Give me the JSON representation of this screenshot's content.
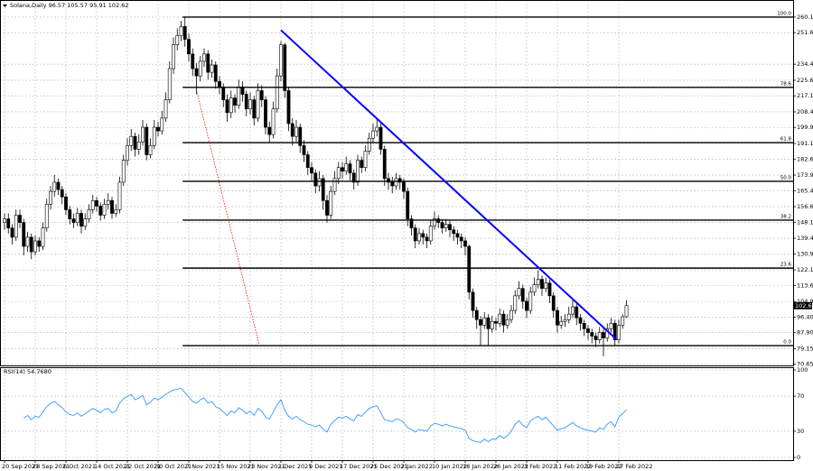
{
  "chart_data": [
    {
      "type": "candlestick",
      "title": "Solana,Daily",
      "ylim": [
        70,
        267
      ],
      "yticks": [
        {
          "value": 260.15,
          "label": "260.15"
        },
        {
          "value": 251.65,
          "label": "251.65"
        },
        {
          "value": 234.4,
          "label": "234.40"
        },
        {
          "value": 225.65,
          "label": "225.65"
        },
        {
          "value": 217.15,
          "label": "217.15"
        },
        {
          "value": 208.4,
          "label": "208.40"
        },
        {
          "value": 199.9,
          "label": "199.90"
        },
        {
          "value": 191.15,
          "label": "191.15"
        },
        {
          "value": 182.65,
          "label": "182.65"
        },
        {
          "value": 173.9,
          "label": "173.90"
        },
        {
          "value": 165.4,
          "label": "165.40"
        },
        {
          "value": 156.65,
          "label": "156.65"
        },
        {
          "value": 148.15,
          "label": "148.15"
        },
        {
          "value": 139.4,
          "label": "139.40"
        },
        {
          "value": 130.9,
          "label": "130.90"
        },
        {
          "value": 122.15,
          "label": "122.15"
        },
        {
          "value": 113.65,
          "label": "113.65"
        },
        {
          "value": 104.9,
          "label": "104.90"
        },
        {
          "value": 96.4,
          "label": "96.40"
        },
        {
          "value": 87.9,
          "label": "87.90"
        },
        {
          "value": 79.15,
          "label": "79.15"
        },
        {
          "value": 70.65,
          "label": "70.65"
        }
      ],
      "xticks": [
        {
          "value": 0,
          "label": "20 Sep 2021"
        },
        {
          "value": 8,
          "label": "28 Sep 2021"
        },
        {
          "value": 16,
          "label": "6 Oct 2021"
        },
        {
          "value": 24,
          "label": "14 Oct 2021"
        },
        {
          "value": 32,
          "label": "22 Oct 2021"
        },
        {
          "value": 40,
          "label": "30 Oct 2021"
        },
        {
          "value": 48,
          "label": "7 Nov 2021"
        },
        {
          "value": 56,
          "label": "15 Nov 2021"
        },
        {
          "value": 64,
          "label": "23 Nov 2021"
        },
        {
          "value": 72,
          "label": "1 Dec 2021"
        },
        {
          "value": 80,
          "label": "9 Dec 2021"
        },
        {
          "value": 88,
          "label": "17 Dec 2021"
        },
        {
          "value": 96,
          "label": "25 Dec 2021"
        },
        {
          "value": 104,
          "label": "2 Jan 2022"
        },
        {
          "value": 112,
          "label": "10 Jan 2022"
        },
        {
          "value": 120,
          "label": "18 Jan 2022"
        },
        {
          "value": 128,
          "label": "26 Jan 2022"
        },
        {
          "value": 136,
          "label": "3 Feb 2022"
        },
        {
          "value": 144,
          "label": "11 Feb 2022"
        },
        {
          "value": 152,
          "label": "19 Feb 2022"
        },
        {
          "value": 160,
          "label": "27 Feb 2022"
        }
      ],
      "grid": true,
      "levels": [
        {
          "value": 260.15,
          "label": "100.0"
        },
        {
          "value": 221.77,
          "label": "78.6"
        },
        {
          "value": 191.64,
          "label": "61.8"
        },
        {
          "value": 170.48,
          "label": "50.0"
        },
        {
          "value": 149.31,
          "label": "38.2"
        },
        {
          "value": 123.13,
          "label": "23.6"
        },
        {
          "value": 80.8,
          "label": "0.0"
        }
      ],
      "trendlines": [
        {
          "color": "#0000ff",
          "style": "solid",
          "x": [
            72,
            159.5
          ],
          "y": [
            253,
            84
          ]
        },
        {
          "color": "#ff0000",
          "style": "dotted",
          "x": [
            50,
            66.4
          ],
          "y": [
            220.3,
            80.8
          ]
        }
      ],
      "candles": [
        [
          148,
          153,
          144,
          150
        ],
        [
          150,
          153,
          142,
          145
        ],
        [
          145,
          147,
          136,
          140
        ],
        [
          140,
          155,
          138,
          152
        ],
        [
          152,
          155,
          145,
          148
        ],
        [
          148,
          150,
          130,
          135
        ],
        [
          135,
          143,
          132,
          140
        ],
        [
          140,
          142,
          128,
          132
        ],
        [
          132,
          141,
          130,
          138
        ],
        [
          138,
          140,
          132,
          135
        ],
        [
          135,
          148,
          133,
          145
        ],
        [
          145,
          161,
          143,
          158
        ],
        [
          158,
          168,
          155,
          165
        ],
        [
          165,
          174,
          162,
          170
        ],
        [
          170,
          172,
          163,
          166
        ],
        [
          166,
          168,
          158,
          162
        ],
        [
          162,
          164,
          152,
          155
        ],
        [
          155,
          157,
          147,
          150
        ],
        [
          150,
          153,
          145,
          148
        ],
        [
          148,
          156,
          146,
          153
        ],
        [
          153,
          155,
          142,
          146
        ],
        [
          146,
          153,
          144,
          150
        ],
        [
          150,
          158,
          148,
          155
        ],
        [
          155,
          163,
          153,
          160
        ],
        [
          160,
          162,
          154,
          157
        ],
        [
          157,
          159,
          149,
          152
        ],
        [
          152,
          161,
          150,
          158
        ],
        [
          158,
          164,
          155,
          160
        ],
        [
          160,
          162,
          150,
          153
        ],
        [
          153,
          158,
          151,
          155
        ],
        [
          155,
          173,
          153,
          170
        ],
        [
          170,
          185,
          168,
          182
        ],
        [
          182,
          194,
          179,
          190
        ],
        [
          190,
          199,
          187,
          195
        ],
        [
          195,
          197,
          184,
          188
        ],
        [
          188,
          196,
          185,
          192
        ],
        [
          192,
          204,
          190,
          200
        ],
        [
          200,
          202,
          182,
          185
        ],
        [
          185,
          194,
          183,
          190
        ],
        [
          190,
          204,
          188,
          200
        ],
        [
          200,
          203,
          195,
          198
        ],
        [
          198,
          209,
          196,
          205
        ],
        [
          205,
          219,
          203,
          215
        ],
        [
          215,
          236,
          213,
          232
        ],
        [
          232,
          249,
          229,
          245
        ],
        [
          245,
          254,
          242,
          250
        ],
        [
          250,
          258,
          247,
          255
        ],
        [
          255,
          260.15,
          244,
          248
        ],
        [
          248,
          251,
          236,
          240
        ],
        [
          240,
          243,
          228,
          232
        ],
        [
          232,
          235,
          218,
          228
        ],
        [
          228,
          239,
          225,
          236
        ],
        [
          236,
          243,
          233,
          240
        ],
        [
          240,
          242,
          226,
          230
        ],
        [
          230,
          237,
          227,
          234
        ],
        [
          234,
          236,
          221,
          225
        ],
        [
          225,
          228,
          218,
          222
        ],
        [
          222,
          224,
          211,
          215
        ],
        [
          215,
          218,
          203,
          208
        ],
        [
          208,
          220,
          205,
          216
        ],
        [
          216,
          218,
          208,
          212
        ],
        [
          212,
          226,
          210,
          222
        ],
        [
          222,
          225,
          214,
          218
        ],
        [
          218,
          220,
          206,
          210
        ],
        [
          210,
          219,
          207,
          215
        ],
        [
          215,
          217,
          201,
          205
        ],
        [
          205,
          224,
          203,
          220
        ],
        [
          220,
          223,
          211,
          215
        ],
        [
          215,
          217,
          196,
          200
        ],
        [
          200,
          203,
          192,
          196
        ],
        [
          196,
          214,
          194,
          210
        ],
        [
          210,
          232,
          208,
          228
        ],
        [
          228,
          247,
          225,
          245
        ],
        [
          245,
          246,
          216,
          220
        ],
        [
          220,
          222,
          198,
          202
        ],
        [
          202,
          205,
          190,
          195
        ],
        [
          195,
          204,
          192,
          200
        ],
        [
          200,
          202,
          186,
          190
        ],
        [
          190,
          193,
          181,
          185
        ],
        [
          185,
          187,
          174,
          178
        ],
        [
          178,
          181,
          171,
          175
        ],
        [
          175,
          177,
          164,
          168
        ],
        [
          168,
          176,
          165,
          172
        ],
        [
          172,
          174,
          155,
          160
        ],
        [
          160,
          163,
          148,
          152
        ],
        [
          152,
          168,
          150,
          165
        ],
        [
          165,
          176,
          163,
          172
        ],
        [
          172,
          181,
          169,
          178
        ],
        [
          178,
          181,
          172,
          176
        ],
        [
          176,
          184,
          174,
          180
        ],
        [
          180,
          182,
          171,
          175
        ],
        [
          175,
          177,
          166,
          170
        ],
        [
          170,
          185,
          168,
          182
        ],
        [
          182,
          184,
          175,
          178
        ],
        [
          178,
          190,
          176,
          187
        ],
        [
          187,
          197,
          185,
          194
        ],
        [
          194,
          202,
          192,
          198
        ],
        [
          198,
          205,
          195,
          200
        ],
        [
          200,
          202,
          185,
          188
        ],
        [
          188,
          190,
          168,
          172
        ],
        [
          172,
          175,
          166,
          170
        ],
        [
          170,
          173,
          164,
          168
        ],
        [
          168,
          175,
          166,
          172
        ],
        [
          172,
          174,
          166,
          170
        ],
        [
          170,
          172,
          161,
          165
        ],
        [
          165,
          167,
          146,
          150
        ],
        [
          150,
          152,
          141,
          145
        ],
        [
          145,
          147,
          134,
          138
        ],
        [
          138,
          145,
          136,
          142
        ],
        [
          142,
          144,
          136,
          140
        ],
        [
          140,
          142,
          134,
          138
        ],
        [
          138,
          149,
          136,
          146
        ],
        [
          146,
          154,
          144,
          150
        ],
        [
          150,
          152,
          145,
          148
        ],
        [
          148,
          150,
          142,
          145
        ],
        [
          145,
          150,
          143,
          147
        ],
        [
          147,
          149,
          140,
          144
        ],
        [
          144,
          146,
          138,
          142
        ],
        [
          142,
          144,
          136,
          140
        ],
        [
          140,
          142,
          134,
          138
        ],
        [
          138,
          140,
          130,
          135
        ],
        [
          135,
          136,
          106,
          110
        ],
        [
          110,
          112,
          96,
          100
        ],
        [
          100,
          102,
          90,
          95
        ],
        [
          95,
          97,
          81,
          92
        ],
        [
          92,
          99,
          90,
          96
        ],
        [
          96,
          98,
          81,
          90
        ],
        [
          90,
          97,
          88,
          94
        ],
        [
          94,
          96,
          89,
          93
        ],
        [
          93,
          101,
          91,
          98
        ],
        [
          98,
          100,
          88,
          92
        ],
        [
          92,
          98,
          90,
          95
        ],
        [
          95,
          103,
          93,
          100
        ],
        [
          100,
          111,
          98,
          108
        ],
        [
          108,
          116,
          106,
          112
        ],
        [
          112,
          114,
          101,
          105
        ],
        [
          105,
          107,
          96,
          100
        ],
        [
          100,
          113,
          98,
          110
        ],
        [
          110,
          118,
          108,
          114
        ],
        [
          114,
          122,
          112,
          117
        ],
        [
          117,
          119,
          108,
          112
        ],
        [
          112,
          118,
          110,
          115
        ],
        [
          115,
          117,
          104,
          108
        ],
        [
          108,
          110,
          96,
          100
        ],
        [
          100,
          102,
          88,
          92
        ],
        [
          92,
          97,
          90,
          94
        ],
        [
          94,
          98,
          91,
          95
        ],
        [
          95,
          102,
          93,
          98
        ],
        [
          98,
          106,
          96,
          102
        ],
        [
          102,
          104,
          92,
          96
        ],
        [
          96,
          98,
          89,
          93
        ],
        [
          93,
          95,
          86,
          90
        ],
        [
          90,
          92,
          84,
          88
        ],
        [
          88,
          90,
          82,
          86
        ],
        [
          86,
          88,
          80,
          84
        ],
        [
          84,
          91,
          82,
          88
        ],
        [
          88,
          90,
          75,
          85
        ],
        [
          85,
          93,
          83,
          90
        ],
        [
          90,
          96,
          88,
          93
        ],
        [
          93,
          95,
          81,
          84
        ],
        [
          84,
          95,
          82,
          92
        ],
        [
          92,
          98,
          90,
          96.57
        ],
        [
          96.57,
          105.57,
          95.91,
          102.62
        ]
      ]
    },
    {
      "type": "line",
      "title": "RSI(14)",
      "current_label": "54.7680",
      "color": "#3399ff",
      "ylim": [
        0,
        100
      ],
      "yticks": [
        0,
        30,
        70,
        100
      ],
      "grid": true,
      "values": [
        null,
        null,
        null,
        null,
        null,
        45,
        48,
        43,
        47,
        46,
        52,
        58,
        62,
        64,
        60,
        57,
        52,
        49,
        48,
        51,
        47,
        50,
        53,
        56,
        54,
        51,
        55,
        56,
        51,
        53,
        62,
        67,
        70,
        72,
        66,
        68,
        71,
        60,
        63,
        68,
        66,
        69,
        72,
        75,
        77,
        78,
        79,
        74,
        69,
        64,
        62,
        66,
        68,
        62,
        64,
        58,
        56,
        52,
        48,
        53,
        51,
        57,
        54,
        50,
        53,
        48,
        56,
        53,
        46,
        44,
        52,
        60,
        66,
        54,
        47,
        44,
        47,
        43,
        41,
        38,
        37,
        35,
        37,
        32,
        29,
        38,
        42,
        46,
        45,
        47,
        44,
        42,
        49,
        47,
        52,
        56,
        58,
        59,
        51,
        43,
        42,
        41,
        44,
        43,
        40,
        34,
        32,
        29,
        32,
        31,
        30,
        36,
        39,
        38,
        36,
        38,
        36,
        35,
        34,
        33,
        31,
        22,
        19,
        18,
        17,
        21,
        18,
        21,
        21,
        25,
        22,
        25,
        30,
        38,
        42,
        37,
        34,
        42,
        45,
        47,
        43,
        46,
        41,
        36,
        31,
        33,
        34,
        37,
        40,
        36,
        34,
        32,
        31,
        30,
        29,
        34,
        32,
        38,
        41,
        35,
        46,
        50,
        54.768
      ]
    }
  ]
}
